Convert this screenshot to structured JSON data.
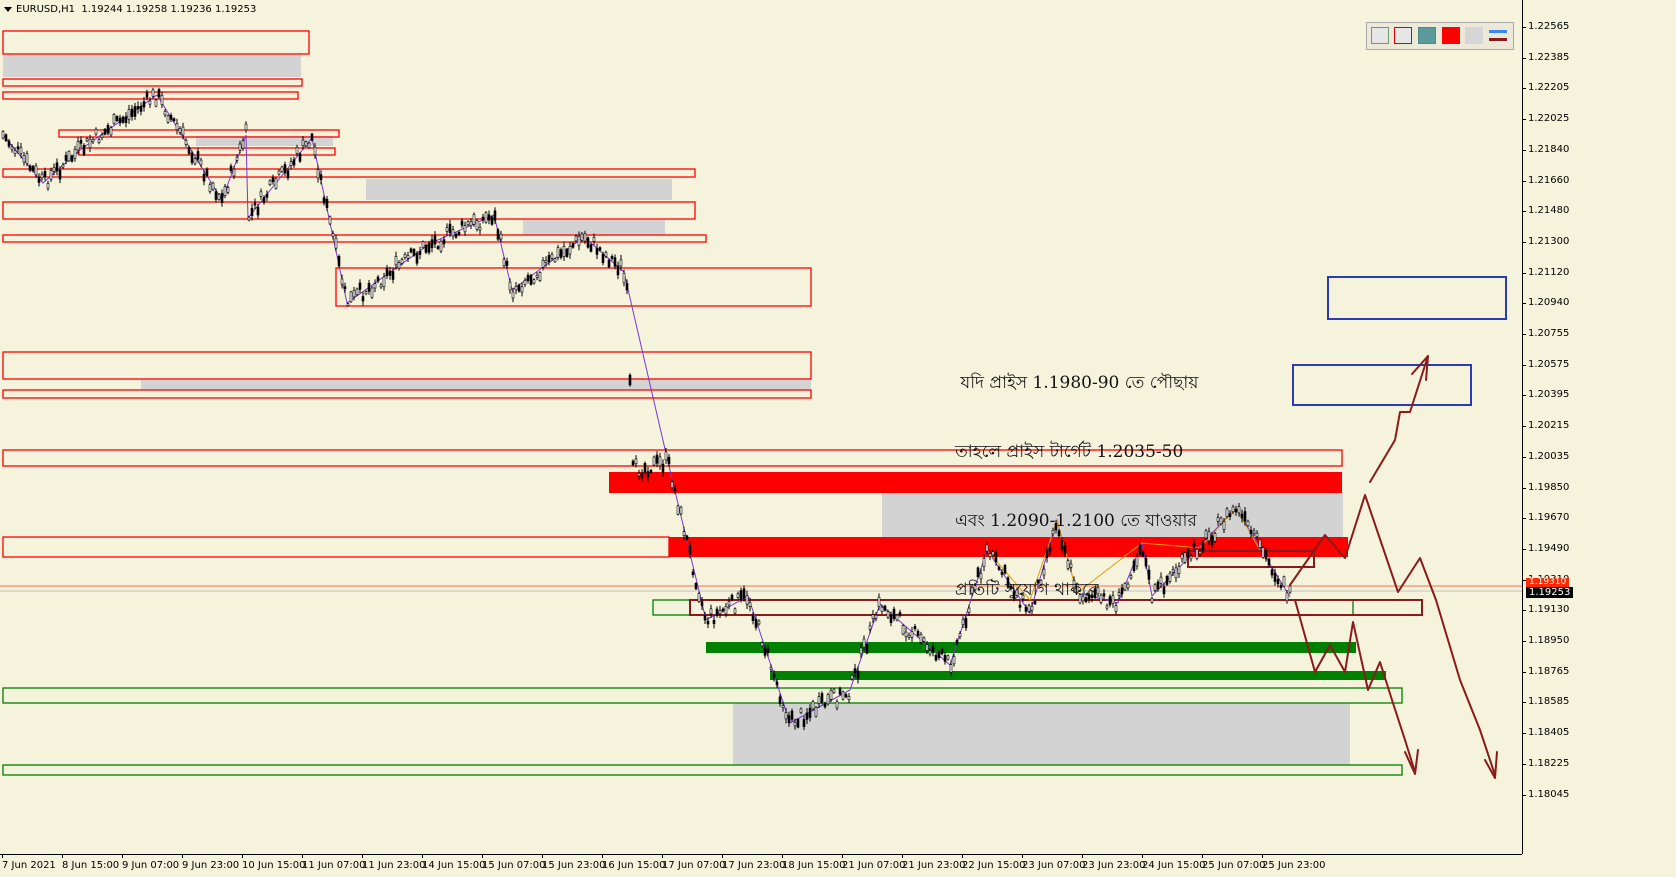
{
  "header": {
    "symbol_timeframe": "EURUSD,H1",
    "ohlc": "1.19244 1.19258 1.19236 1.19253"
  },
  "price_axis": {
    "ticks": [
      "1.22565",
      "1.22385",
      "1.22205",
      "1.22025",
      "1.21840",
      "1.21660",
      "1.21480",
      "1.21300",
      "1.21120",
      "1.20940",
      "1.20755",
      "1.20575",
      "1.20395",
      "1.20215",
      "1.20035",
      "1.19850",
      "1.19670",
      "1.19490",
      "1.19310",
      "1.19130",
      "1.18950",
      "1.18765",
      "1.18585",
      "1.18405",
      "1.18225",
      "1.18045"
    ],
    "current_price": "1.19253",
    "red_price": "1.19310"
  },
  "time_axis": {
    "ticks": [
      "7 Jun 2021",
      "8 Jun 15:00",
      "9 Jun 07:00",
      "9 Jun 23:00",
      "10 Jun 15:00",
      "11 Jun 07:00",
      "11 Jun 23:00",
      "14 Jun 15:00",
      "15 Jun 07:00",
      "15 Jun 23:00",
      "16 Jun 15:00",
      "17 Jun 07:00",
      "17 Jun 23:00",
      "18 Jun 15:00",
      "21 Jun 07:00",
      "21 Jun 23:00",
      "22 Jun 15:00",
      "23 Jun 07:00",
      "23 Jun 23:00",
      "24 Jun 15:00",
      "25 Jun 07:00",
      "25 Jun 23:00"
    ]
  },
  "annotation": {
    "lines": [
      " যদি প্রাইস 1.1980-90 তে পৌছায়",
      "তাহলে প্রাইস টার্গেট 1.2035-50",
      "এবং 1.2090-1.2100 তে যাওয়ার",
      "প্রতিটি সুযোগ থাকবে"
    ]
  },
  "toolbar": {
    "buttons": [
      "gray-rect-icon",
      "red-rect-icon",
      "teal-fill-icon",
      "red-fill-icon",
      "light-gray-fill-icon",
      "line-color-icon"
    ]
  },
  "colors": {
    "background": "#f5f3dc",
    "resistance": "#ff0000",
    "support": "#008000",
    "target": "#2b3bb0",
    "arrow": "#8b1a1a",
    "zigzag": "#7a35d0"
  }
}
